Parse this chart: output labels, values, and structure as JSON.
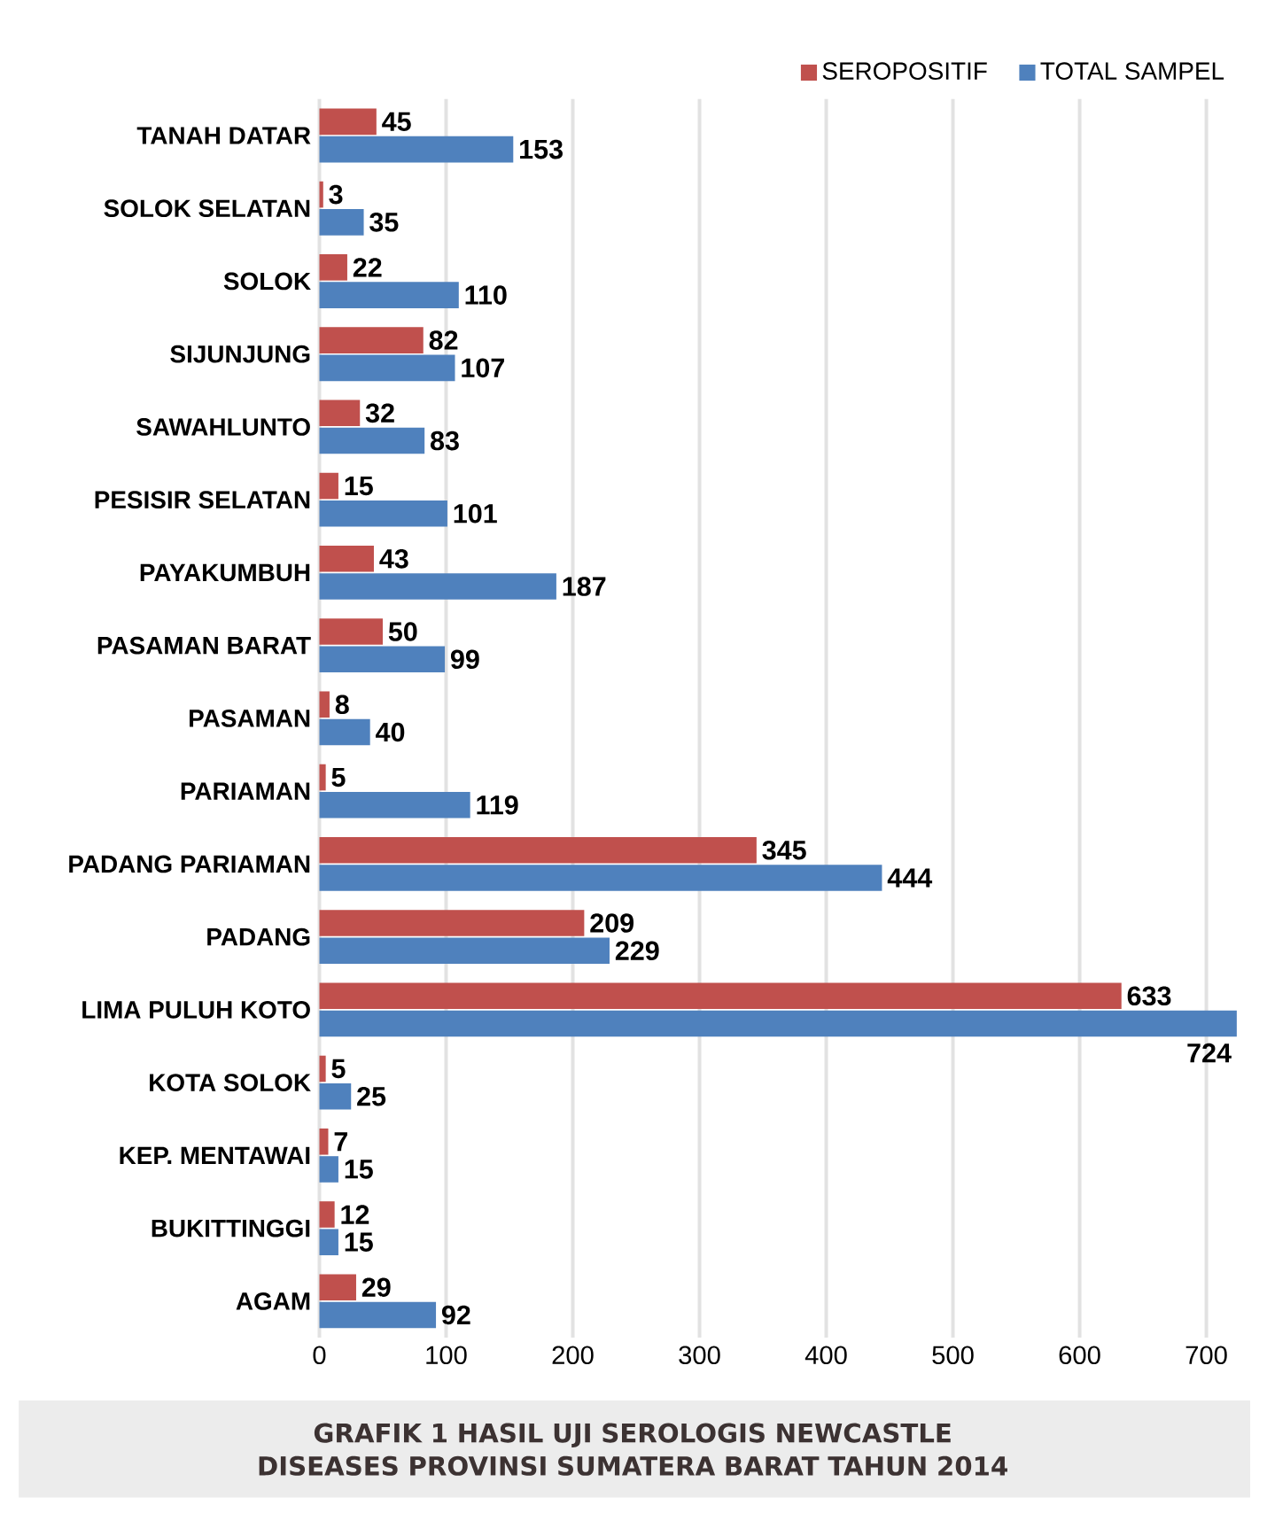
{
  "chart_data": {
    "type": "bar",
    "orientation": "horizontal",
    "title": "GRAFIK 1 HASIL UJI SEROLOGIS NEWCASTLE DISEASES PROVINSI SUMATERA BARAT TAHUN 2014",
    "categories": [
      "TANAH DATAR",
      "SOLOK SELATAN",
      "SOLOK",
      "SIJUNJUNG",
      "SAWAHLUNTO",
      "PESISIR SELATAN",
      "PAYAKUMBUH",
      "PASAMAN BARAT",
      "PASAMAN",
      "PARIAMAN",
      "PADANG PARIAMAN",
      "PADANG",
      "LIMA PULUH KOTO",
      "KOTA SOLOK",
      "KEP. MENTAWAI",
      "BUKITTINGGI",
      "AGAM"
    ],
    "series": [
      {
        "name": "SEROPOSITIF",
        "color": "#c0504d",
        "values": [
          45,
          3,
          22,
          82,
          32,
          15,
          43,
          50,
          8,
          5,
          345,
          209,
          633,
          5,
          7,
          12,
          29
        ]
      },
      {
        "name": "TOTAL SAMPEL",
        "color": "#4f81bd",
        "values": [
          153,
          35,
          110,
          107,
          83,
          101,
          187,
          99,
          40,
          119,
          444,
          229,
          724,
          25,
          15,
          15,
          92
        ]
      }
    ],
    "xlim": [
      0,
      724
    ],
    "xticks": [
      0,
      100,
      200,
      300,
      400,
      500,
      600,
      700
    ],
    "grid": "x",
    "legend": "top right",
    "data_labels": true
  }
}
